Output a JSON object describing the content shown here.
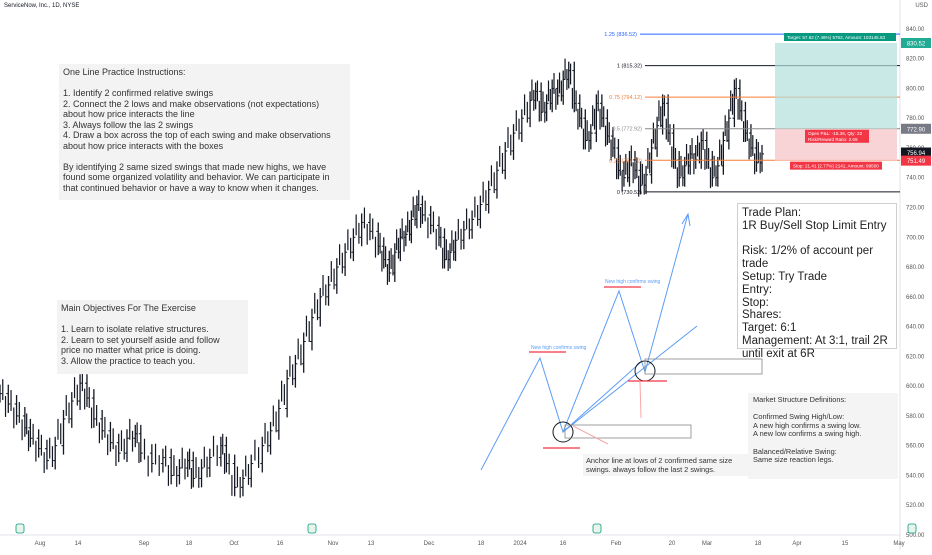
{
  "header": {
    "title": "ServiceNow, Inc., 1D, NYSE",
    "currency": "USD"
  },
  "chart_data": {
    "type": "candlestick",
    "title": "ServiceNow, Inc., 1D, NYSE",
    "ylim": [
      500,
      850
    ],
    "y_ticks": [
      500,
      520,
      540,
      560,
      580,
      600,
      620,
      640,
      660,
      680,
      700,
      720,
      740,
      760,
      780,
      800,
      820,
      840
    ],
    "x_ticks": [
      "Aug",
      "14",
      "Sep",
      "18",
      "Oct",
      "16",
      "Nov",
      "13",
      "Dec",
      "18",
      "2024",
      "16",
      "Feb",
      "20",
      "Mar",
      "18",
      "Apr",
      "15",
      "May"
    ],
    "price_path": [
      [
        0,
        595
      ],
      [
        6,
        588
      ],
      [
        12,
        580
      ],
      [
        18,
        572
      ],
      [
        22,
        565
      ],
      [
        28,
        558
      ],
      [
        34,
        550
      ],
      [
        40,
        560
      ],
      [
        46,
        578
      ],
      [
        52,
        590
      ],
      [
        58,
        602
      ],
      [
        63,
        592
      ],
      [
        68,
        578
      ],
      [
        74,
        570
      ],
      [
        80,
        562
      ],
      [
        86,
        555
      ],
      [
        92,
        565
      ],
      [
        98,
        568
      ],
      [
        102,
        555
      ],
      [
        110,
        548
      ],
      [
        118,
        552
      ],
      [
        124,
        540
      ],
      [
        130,
        545
      ],
      [
        136,
        550
      ],
      [
        140,
        538
      ],
      [
        146,
        545
      ],
      [
        152,
        552
      ],
      [
        160,
        560
      ],
      [
        164,
        548
      ],
      [
        170,
        532
      ],
      [
        176,
        538
      ],
      [
        182,
        548
      ],
      [
        190,
        560
      ],
      [
        196,
        570
      ],
      [
        202,
        585
      ],
      [
        208,
        605
      ],
      [
        214,
        615
      ],
      [
        220,
        630
      ],
      [
        226,
        646
      ],
      [
        232,
        660
      ],
      [
        238,
        668
      ],
      [
        244,
        680
      ],
      [
        250,
        690
      ],
      [
        256,
        700
      ],
      [
        262,
        710
      ],
      [
        268,
        704
      ],
      [
        274,
        694
      ],
      [
        278,
        685
      ],
      [
        282,
        676
      ],
      [
        286,
        690
      ],
      [
        290,
        700
      ],
      [
        294,
        702
      ],
      [
        298,
        712
      ],
      [
        302,
        722
      ],
      [
        306,
        715
      ],
      [
        312,
        708
      ],
      [
        318,
        700
      ],
      [
        322,
        685
      ],
      [
        326,
        690
      ],
      [
        330,
        698
      ],
      [
        336,
        705
      ],
      [
        342,
        712
      ],
      [
        348,
        722
      ],
      [
        354,
        732
      ],
      [
        360,
        745
      ],
      [
        366,
        758
      ],
      [
        372,
        770
      ],
      [
        378,
        780
      ],
      [
        384,
        792
      ],
      [
        388,
        798
      ],
      [
        392,
        784
      ],
      [
        396,
        790
      ],
      [
        400,
        800
      ],
      [
        404,
        795
      ],
      [
        408,
        806
      ],
      [
        412,
        812
      ],
      [
        416,
        790
      ],
      [
        420,
        780
      ],
      [
        424,
        765
      ],
      [
        428,
        770
      ],
      [
        432,
        790
      ],
      [
        436,
        780
      ],
      [
        440,
        768
      ],
      [
        444,
        760
      ],
      [
        448,
        745
      ],
      [
        452,
        740
      ],
      [
        456,
        752
      ],
      [
        460,
        745
      ],
      [
        464,
        735
      ],
      [
        468,
        742
      ],
      [
        472,
        760
      ],
      [
        476,
        775
      ],
      [
        480,
        790
      ],
      [
        484,
        770
      ],
      [
        488,
        752
      ],
      [
        492,
        740
      ],
      [
        496,
        748
      ],
      [
        500,
        756
      ],
      [
        504,
        752
      ],
      [
        508,
        765
      ],
      [
        512,
        752
      ],
      [
        516,
        740
      ],
      [
        520,
        748
      ],
      [
        524,
        765
      ],
      [
        528,
        780
      ],
      [
        532,
        800
      ],
      [
        536,
        785
      ],
      [
        540,
        770
      ],
      [
        544,
        760
      ],
      [
        548,
        750
      ],
      [
        552,
        756
      ]
    ],
    "fib_levels": [
      {
        "label": "1.25 (836.52)",
        "value": 836.52,
        "color": "#2962ff"
      },
      {
        "label": "1 (815.32)",
        "value": 815.32,
        "color": "#131722"
      },
      {
        "label": "0.75 (794.12)",
        "value": 794.12,
        "color": "#f57c36"
      },
      {
        "label": "0.5 (772.92)",
        "value": 772.92,
        "color": "#888888"
      },
      {
        "label": "0.25 (751.72)",
        "value": 751.72,
        "color": "#f57c36"
      },
      {
        "label": "0 (730.52)",
        "value": 730.52,
        "color": "#131722"
      }
    ],
    "position": {
      "target_label": "Target: 57.62 (7.46%) 5762, Amount: 103145.63",
      "open_label": "Open P&L: -15.36, Qty: 22",
      "rr_label": "Risk/Reward Ratio: 2.69",
      "stop_label": "Stop: 21.41 (2.77%) 2141, Amount: 99500",
      "target_price": 830.52,
      "entry_price": 772.9,
      "stop_price": 751.49
    },
    "price_tags": [
      {
        "label": "830.52",
        "value": 830.52,
        "color": "#22ab94"
      },
      {
        "label": "772.90",
        "value": 772.9,
        "color": "#787b86"
      },
      {
        "label": "756.94",
        "value": 756.94,
        "color": "#131722"
      },
      {
        "label": "751.49",
        "value": 751.49,
        "color": "#f23645"
      }
    ]
  },
  "notes": {
    "practice": "One Line Practice Instructions:\n\n1. Identify 2 confirmed relative swings\n2. Connect the 2 lows and make observations (not expectations)\nabout how price interacts the line\n3. Always follow the las 2 swings\n4. Draw a box across the top of each swing and make observations\nabout how price interacts with the boxes\n\nBy identifying 2 same sized swings that made new highs, we have\nfound some organized volatility and behavior. We can participate in\nthat continued behavior or have a way to know when it changes.",
    "objectives": "Main Objectives For The Exercise\n\n1. Learn to isolate relative structures.\n2. Learn to set yourself aside and follow\nprice no matter what price is doing.\n3. Allow the practice to teach you.",
    "trade_plan": "Trade Plan:\n1R Buy/Sell Stop Limit Entry\n\nRisk: 1/2% of account per trade\nSetup: Try Trade\nEntry:\nStop:\nShares:\nTarget: 6:1\nManagement: At 3:1, trail 2R\nuntil exit at 6R",
    "definitions": "Market Structure Definitions:\n\nConfirmed Swing High/Low:\nA new high confirms a swing low.\nA new low confirms a swing high.\n\nBalanced/Relative Swing:\nSame size reaction legs.",
    "anchor": "Anchor line at lows of 2 confirmed same size\nswings. always follow the last 2 swings.",
    "swing_label_1": "New high confirms swing",
    "swing_label_2": "New high confirms swing"
  }
}
